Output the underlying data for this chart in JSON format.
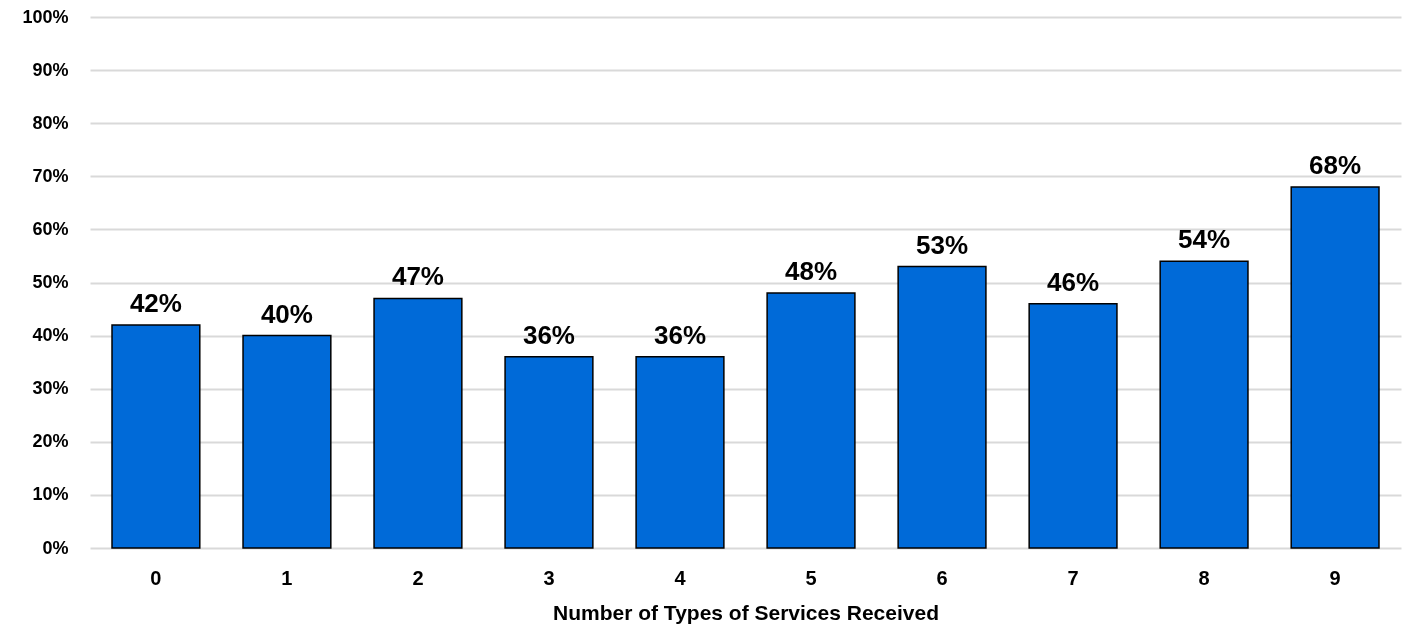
{
  "chart_data": {
    "type": "bar",
    "xlabel": "Number of Types of Services Received",
    "categories": [
      "0",
      "1",
      "2",
      "3",
      "4",
      "5",
      "6",
      "7",
      "8",
      "9"
    ],
    "values": [
      42,
      40,
      47,
      36,
      36,
      48,
      53,
      46,
      54,
      68
    ],
    "value_labels": [
      "42%",
      "40%",
      "47%",
      "36%",
      "36%",
      "48%",
      "53%",
      "46%",
      "54%",
      "68%"
    ],
    "color": "#006ad8",
    "ylim": [
      0,
      100
    ],
    "yticks": [
      {
        "value": 0,
        "label": "0%"
      },
      {
        "value": 10,
        "label": "10%"
      },
      {
        "value": 20,
        "label": "20%"
      },
      {
        "value": 30,
        "label": "30%"
      },
      {
        "value": 40,
        "label": "40%"
      },
      {
        "value": 50,
        "label": "50%"
      },
      {
        "value": 60,
        "label": "60%"
      },
      {
        "value": 70,
        "label": "70%"
      },
      {
        "value": 80,
        "label": "80%"
      },
      {
        "value": 90,
        "label": "90%"
      },
      {
        "value": 100,
        "label": "100%"
      }
    ],
    "grid": "y"
  }
}
